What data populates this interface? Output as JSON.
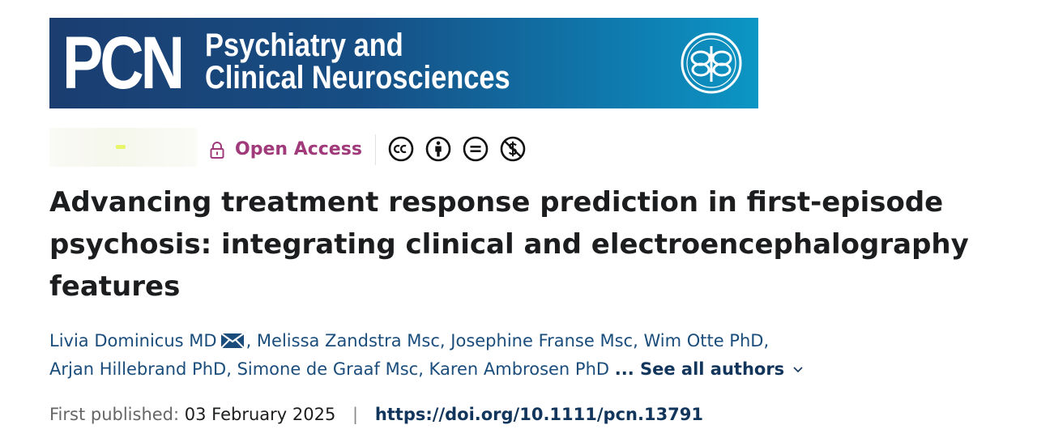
{
  "journal": {
    "abbreviation": "PCN",
    "name_line1": "Psychiatry and",
    "name_line2": "Clinical Neurosciences",
    "seal_icon": "society-emblem-icon"
  },
  "access": {
    "label": "Open Access",
    "lock_icon": "lock-icon",
    "license_icons": [
      "creative-commons-icon",
      "attribution-icon",
      "no-derivatives-icon",
      "non-commercial-icon"
    ],
    "label_color": "#a03a7b"
  },
  "article": {
    "title": "Advancing treatment response prediction in first-episode psychosis: integrating clinical and electroencephalography features"
  },
  "authors": {
    "list": [
      "Livia Dominicus MD",
      "Melissa Zandstra Msc",
      "Josephine Franse Msc",
      "Wim Otte PhD",
      "Arjan Hillebrand PhD",
      "Simone de Graaf Msc",
      "Karen Ambrosen PhD"
    ],
    "see_all": "... See all authors"
  },
  "publication": {
    "first_published_label": "First published:",
    "date": "03 February 2025",
    "separator": "|",
    "doi": "https://doi.org/10.1111/pcn.13791"
  },
  "colors": {
    "banner_start": "#1b3d70",
    "banner_end": "#0c96c4",
    "link": "#1a4d7c"
  }
}
